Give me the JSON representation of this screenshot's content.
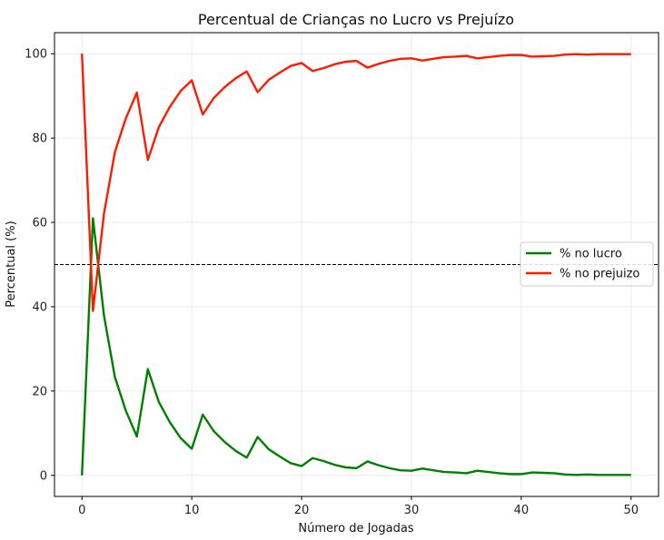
{
  "chart_data": {
    "type": "line",
    "title": "Percentual de Crianças no Lucro vs Prejuízo",
    "xlabel": "Número de Jogadas",
    "ylabel": "Percentual (%)",
    "xlim": [
      -2.5,
      52.5
    ],
    "ylim": [
      -5,
      105
    ],
    "xticks": [
      0,
      10,
      20,
      30,
      40,
      50
    ],
    "yticks": [
      0,
      20,
      40,
      60,
      80,
      100
    ],
    "grid": true,
    "legend_position": "center-right",
    "reference_line": {
      "y": 50,
      "style": "dashed",
      "color": "#000000"
    },
    "x": [
      0,
      1,
      2,
      3,
      4,
      5,
      6,
      7,
      8,
      9,
      10,
      11,
      12,
      13,
      14,
      15,
      16,
      17,
      18,
      19,
      20,
      21,
      22,
      23,
      24,
      25,
      26,
      27,
      28,
      29,
      30,
      31,
      32,
      33,
      34,
      35,
      36,
      37,
      38,
      39,
      40,
      41,
      42,
      43,
      44,
      45,
      46,
      47,
      48,
      49,
      50
    ],
    "series": [
      {
        "name": "% no lucro",
        "color": "#008000",
        "values": [
          0,
          61,
          38,
          23.3,
          15.3,
          9.2,
          25.2,
          17.4,
          12.6,
          8.8,
          6.3,
          14.4,
          10.5,
          7.9,
          5.8,
          4.2,
          9.1,
          6.2,
          4.5,
          2.9,
          2.2,
          4.1,
          3.4,
          2.5,
          1.9,
          1.7,
          3.3,
          2.4,
          1.7,
          1.2,
          1.1,
          1.6,
          1.2,
          0.8,
          0.7,
          0.5,
          1.1,
          0.8,
          0.5,
          0.3,
          0.3,
          0.7,
          0.6,
          0.5,
          0.2,
          0.1,
          0.2,
          0.1,
          0.1,
          0.1,
          0.1
        ]
      },
      {
        "name": "% no prejuizo",
        "color": "#ff1a00",
        "values": [
          100,
          39,
          62,
          76.7,
          84.7,
          90.8,
          74.8,
          82.6,
          87.4,
          91.2,
          93.7,
          85.6,
          89.5,
          92.1,
          94.2,
          95.8,
          90.9,
          93.8,
          95.5,
          97.1,
          97.8,
          95.9,
          96.6,
          97.5,
          98.1,
          98.3,
          96.7,
          97.6,
          98.3,
          98.8,
          98.9,
          98.4,
          98.8,
          99.2,
          99.3,
          99.5,
          98.9,
          99.2,
          99.5,
          99.7,
          99.7,
          99.3,
          99.4,
          99.5,
          99.8,
          99.9,
          99.8,
          99.9,
          99.9,
          99.9,
          99.9
        ]
      }
    ]
  }
}
